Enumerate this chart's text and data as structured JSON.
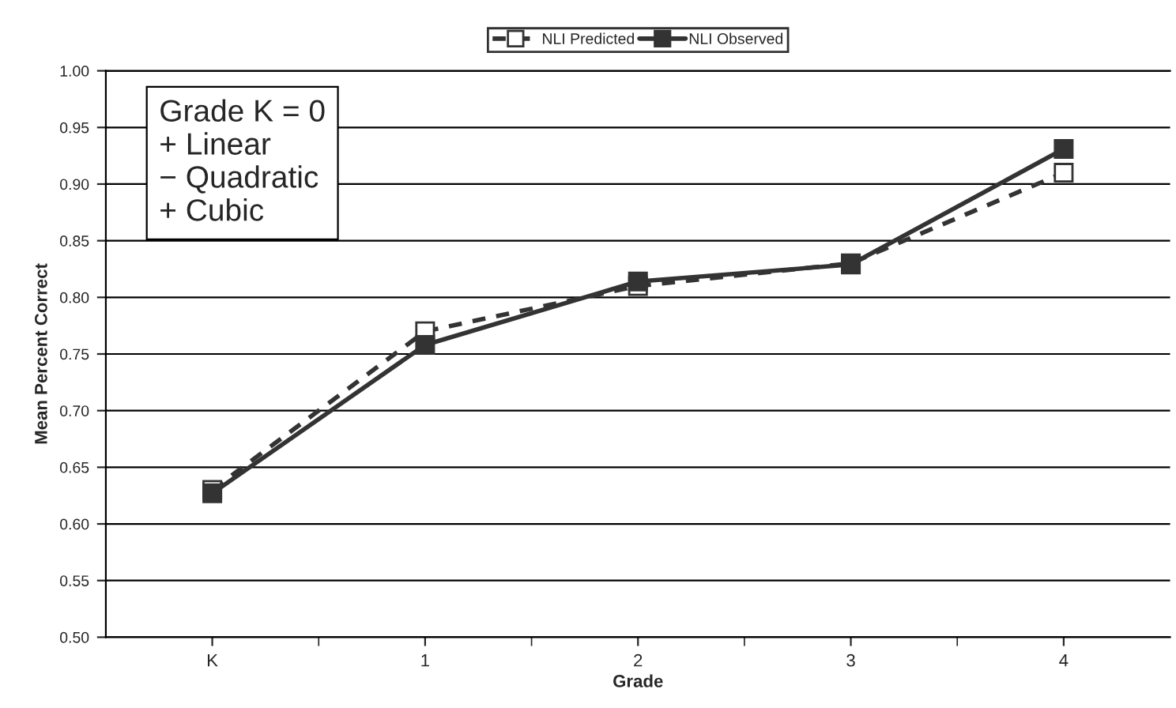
{
  "chart_data": {
    "type": "line",
    "xlabel": "Grade",
    "ylabel": "Mean Percent Correct",
    "categories": [
      "K",
      "1",
      "2",
      "3",
      "4"
    ],
    "series": [
      {
        "name": "NLI Predicted",
        "color": "#333333",
        "values": [
          0.63,
          0.77,
          0.81,
          0.83,
          0.91
        ],
        "line_style": "dashed",
        "marker": "square"
      },
      {
        "name": "NLI Observed",
        "color": "#333333",
        "values": [
          0.627,
          0.758,
          0.814,
          0.829,
          0.931
        ],
        "line_style": "solid",
        "marker": "square"
      }
    ],
    "ylim": [
      0.5,
      1.0
    ],
    "yticks": [
      {
        "value": 0.5,
        "label": "0.50"
      },
      {
        "value": 0.55,
        "label": "0.55"
      },
      {
        "value": 0.6,
        "label": "0.60"
      },
      {
        "value": 0.65,
        "label": "0.65"
      },
      {
        "value": 0.7,
        "label": "0.70"
      },
      {
        "value": 0.75,
        "label": "0.75"
      },
      {
        "value": 0.8,
        "label": "0.80"
      },
      {
        "value": 0.85,
        "label": "0.85"
      },
      {
        "value": 0.9,
        "label": "0.90"
      },
      {
        "value": 0.95,
        "label": "0.95"
      },
      {
        "value": 1.0,
        "label": "1.00"
      }
    ],
    "grid": "y",
    "legend": "top",
    "annotations": [
      "Grade K = 0",
      "+ Linear",
      "− Quadratic",
      "+ Cubic"
    ]
  }
}
